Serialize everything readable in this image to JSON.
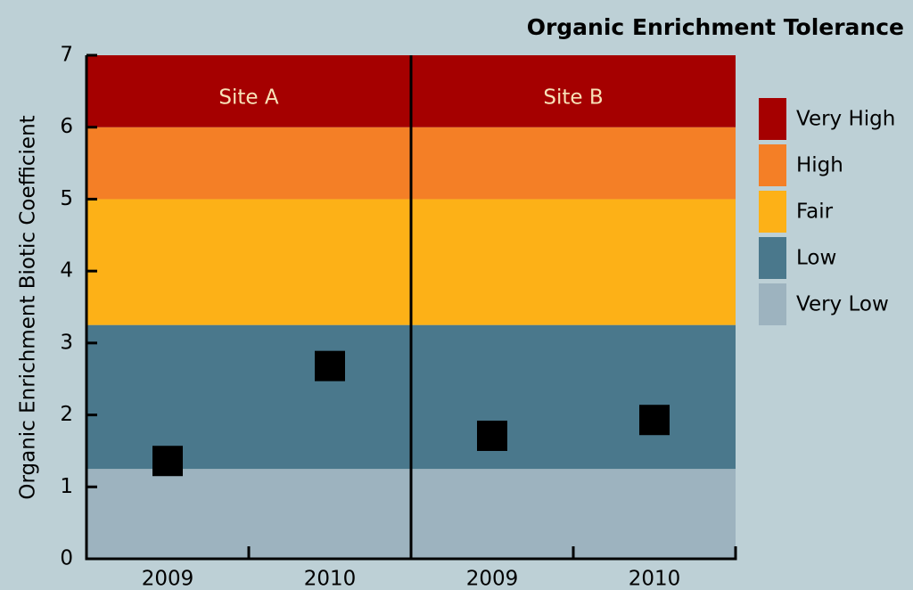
{
  "chart_data": {
    "type": "scatter",
    "title": "Organic Enrichment  Tolerance",
    "ylabel": "Organic Enrichment Biotic Coefficient",
    "ylim": [
      0,
      7
    ],
    "yticks": [
      0,
      1,
      2,
      3,
      4,
      5,
      6,
      7
    ],
    "marker_color": "#000000",
    "bands": [
      {
        "name": "Very Low",
        "from": 0,
        "to": 1.25,
        "color": "#9db3bf"
      },
      {
        "name": "Low",
        "from": 1.25,
        "to": 3.25,
        "color": "#4a788c"
      },
      {
        "name": "Fair",
        "from": 3.25,
        "to": 5,
        "color": "#fdb117"
      },
      {
        "name": "High",
        "from": 5,
        "to": 6,
        "color": "#f47f26"
      },
      {
        "name": "Very High",
        "from": 6,
        "to": 7,
        "color": "#a50000"
      }
    ],
    "panels": [
      {
        "title": "Site A",
        "categories": [
          "2009",
          "2010"
        ],
        "values": [
          1.36,
          2.68
        ]
      },
      {
        "title": "Site B",
        "categories": [
          "2009",
          "2010"
        ],
        "values": [
          1.71,
          1.93
        ]
      }
    ]
  }
}
